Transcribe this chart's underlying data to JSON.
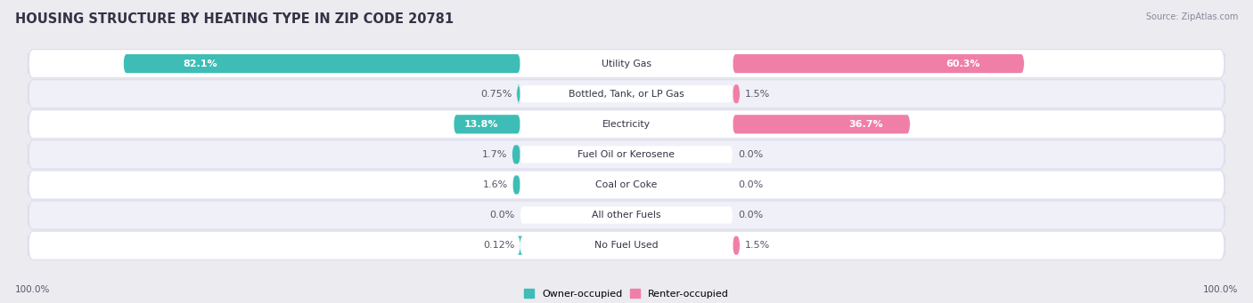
{
  "title": "HOUSING STRUCTURE BY HEATING TYPE IN ZIP CODE 20781",
  "source": "Source: ZipAtlas.com",
  "categories": [
    "Utility Gas",
    "Bottled, Tank, or LP Gas",
    "Electricity",
    "Fuel Oil or Kerosene",
    "Coal or Coke",
    "All other Fuels",
    "No Fuel Used"
  ],
  "owner_values": [
    82.1,
    0.75,
    13.8,
    1.7,
    1.6,
    0.0,
    0.12
  ],
  "renter_values": [
    60.3,
    1.5,
    36.7,
    0.0,
    0.0,
    0.0,
    1.5
  ],
  "owner_color": "#3DBDB5",
  "renter_color": "#F07FA8",
  "owner_color_light": "#7DD5D0",
  "renter_color_light": "#F5AABF",
  "owner_label": "Owner-occupied",
  "renter_label": "Renter-occupied",
  "bg_color": "#EBEBF0",
  "row_bg_even": "#FFFFFF",
  "row_bg_odd": "#F0F0F8",
  "row_border": "#DDDDEE",
  "title_fontsize": 10.5,
  "label_fontsize": 8.0,
  "val_fontsize": 8.0,
  "bar_height": 0.62,
  "max_value": 100.0,
  "axis_label_left": "100.0%",
  "axis_label_right": "100.0%"
}
